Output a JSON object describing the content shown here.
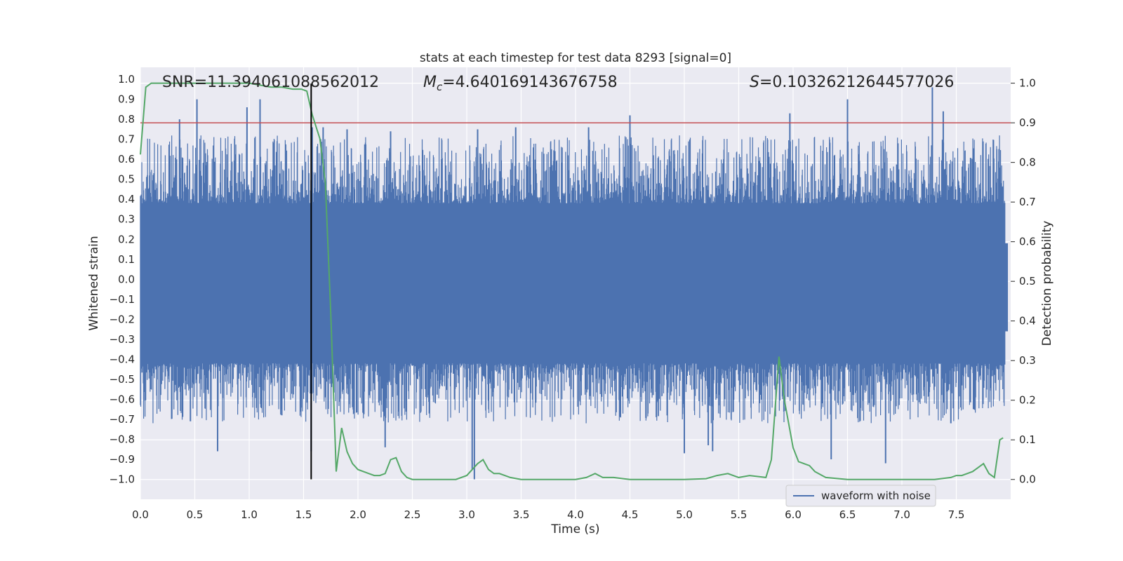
{
  "chart_data": {
    "type": "line",
    "title": "stats at each timestep for test data 8293 [signal=0]",
    "xlabel": "Time (s)",
    "ylabel": "Whitened strain",
    "y2label": "Detection probability",
    "xlim": [
      0.0,
      8.0
    ],
    "ylim": [
      -1.1,
      1.06
    ],
    "y2lim": [
      -0.05,
      1.04
    ],
    "xticks": [
      "0.0",
      "0.5",
      "1.0",
      "1.5",
      "2.0",
      "2.5",
      "3.0",
      "3.5",
      "4.0",
      "4.5",
      "5.0",
      "5.5",
      "6.0",
      "6.5",
      "7.0",
      "7.5"
    ],
    "yticks": [
      "1.0",
      "0.9",
      "0.8",
      "0.7",
      "0.6",
      "0.5",
      "0.4",
      "0.3",
      "0.2",
      "0.1",
      "0.0",
      "-0.1",
      "-0.2",
      "-0.3",
      "-0.4",
      "-0.5",
      "-0.6",
      "-0.7",
      "-0.8",
      "-0.9",
      "-1.0"
    ],
    "y2ticks": [
      "1.0",
      "0.9",
      "0.8",
      "0.7",
      "0.6",
      "0.5",
      "0.4",
      "0.3",
      "0.2",
      "0.1",
      "0.0"
    ],
    "grid": true,
    "legend": {
      "position": "lower right",
      "entries": [
        "waveform with noise"
      ]
    },
    "annotations": {
      "snr": "SNR=11.394061088562012",
      "mc_prefix": "M",
      "mc_sub": "c",
      "mc_value": "=4.640169143676758",
      "s_prefix": "S",
      "s_value": "=0.10326212644577026"
    },
    "vertical_line_x": 1.57,
    "threshold_y2": 0.9,
    "waveform": {
      "name": "waveform with noise",
      "envelope_upper": 0.38,
      "envelope_lower": -0.42,
      "spikes": [
        {
          "x": 0.36,
          "y": 0.8
        },
        {
          "x": 0.52,
          "y": 0.9
        },
        {
          "x": 0.98,
          "y": 0.86
        },
        {
          "x": 1.1,
          "y": 0.9
        },
        {
          "x": 1.58,
          "y": 0.76
        },
        {
          "x": 1.68,
          "y": 0.76
        },
        {
          "x": 1.9,
          "y": 0.75
        },
        {
          "x": 2.3,
          "y": 0.74
        },
        {
          "x": 3.1,
          "y": 0.75
        },
        {
          "x": 3.45,
          "y": 0.76
        },
        {
          "x": 4.12,
          "y": 0.76
        },
        {
          "x": 4.5,
          "y": 0.82
        },
        {
          "x": 5.97,
          "y": 0.83
        },
        {
          "x": 6.5,
          "y": 0.9
        },
        {
          "x": 7.28,
          "y": 0.96
        },
        {
          "x": 7.38,
          "y": 0.84
        },
        {
          "x": 0.46,
          "y": -0.71
        },
        {
          "x": 0.71,
          "y": -0.86
        },
        {
          "x": 1.3,
          "y": -0.68
        },
        {
          "x": 1.57,
          "y": -0.86
        },
        {
          "x": 2.25,
          "y": -0.84
        },
        {
          "x": 3.05,
          "y": -0.95
        },
        {
          "x": 3.07,
          "y": -1.0
        },
        {
          "x": 5.0,
          "y": -0.87
        },
        {
          "x": 5.22,
          "y": -0.83
        },
        {
          "x": 5.26,
          "y": -0.86
        },
        {
          "x": 6.35,
          "y": -0.9
        },
        {
          "x": 6.85,
          "y": -0.92
        },
        {
          "x": 7.45,
          "y": -0.72
        }
      ]
    },
    "detection_probability": {
      "x": [
        0.0,
        0.05,
        0.1,
        0.2,
        0.4,
        0.6,
        0.8,
        1.0,
        1.2,
        1.3,
        1.4,
        1.48,
        1.53,
        1.58,
        1.65,
        1.7,
        1.75,
        1.8,
        1.85,
        1.9,
        1.95,
        2.0,
        2.05,
        2.1,
        2.15,
        2.2,
        2.25,
        2.3,
        2.35,
        2.4,
        2.45,
        2.5,
        2.6,
        2.8,
        2.9,
        3.0,
        3.1,
        3.15,
        3.2,
        3.25,
        3.3,
        3.35,
        3.4,
        3.5,
        3.6,
        3.8,
        4.0,
        4.1,
        4.18,
        4.25,
        4.35,
        4.5,
        4.8,
        5.0,
        5.2,
        5.3,
        5.4,
        5.5,
        5.6,
        5.75,
        5.8,
        5.87,
        5.92,
        6.0,
        6.05,
        6.1,
        6.15,
        6.2,
        6.3,
        6.5,
        6.8,
        7.0,
        7.3,
        7.45,
        7.5,
        7.55,
        7.6,
        7.65,
        7.7,
        7.75,
        7.8,
        7.85,
        7.9,
        7.93
      ],
      "values": [
        0.82,
        0.99,
        1.0,
        1.0,
        1.0,
        1.0,
        1.0,
        1.0,
        0.99,
        0.99,
        0.985,
        0.985,
        0.98,
        0.92,
        0.86,
        0.75,
        0.42,
        0.02,
        0.13,
        0.07,
        0.04,
        0.025,
        0.02,
        0.015,
        0.01,
        0.01,
        0.015,
        0.05,
        0.055,
        0.02,
        0.005,
        0.0,
        0.0,
        0.0,
        0.0,
        0.01,
        0.04,
        0.05,
        0.025,
        0.015,
        0.015,
        0.01,
        0.005,
        0.0,
        0.0,
        0.0,
        0.0,
        0.005,
        0.015,
        0.005,
        0.005,
        0.0,
        0.0,
        0.0,
        0.002,
        0.01,
        0.015,
        0.005,
        0.01,
        0.005,
        0.05,
        0.31,
        0.2,
        0.08,
        0.045,
        0.04,
        0.035,
        0.02,
        0.005,
        0.0,
        0.0,
        0.0,
        0.0,
        0.005,
        0.01,
        0.01,
        0.015,
        0.02,
        0.03,
        0.04,
        0.015,
        0.005,
        0.1,
        0.105
      ]
    },
    "colors": {
      "waveform": "#4c72b0",
      "probability": "#55a868",
      "threshold": "#c44e52",
      "vline": "#000000",
      "background": "#eaeaf2",
      "grid": "#ffffff"
    }
  }
}
